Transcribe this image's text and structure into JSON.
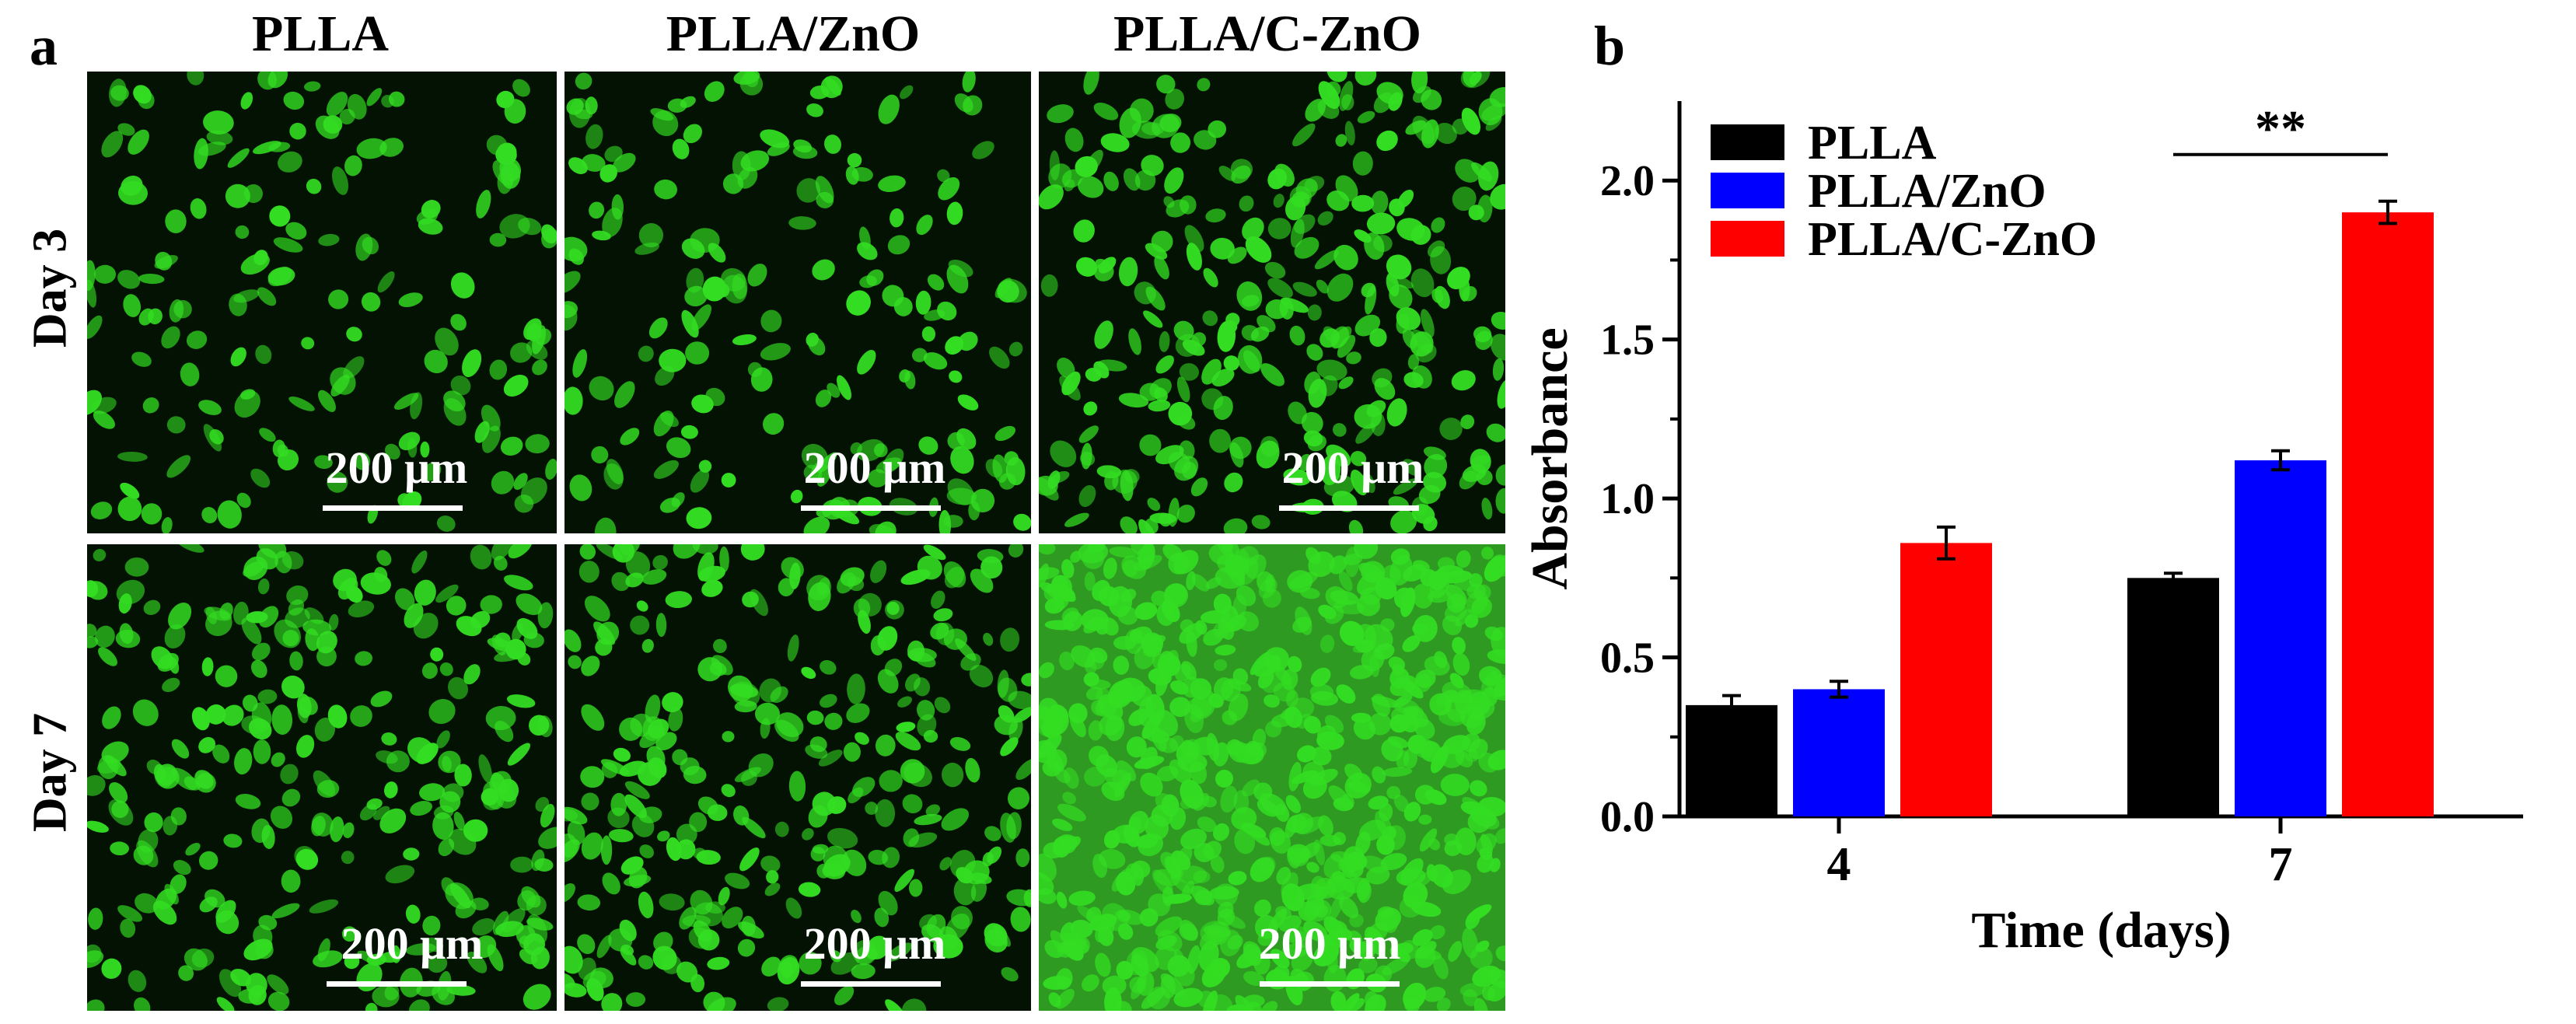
{
  "panel_a": {
    "label": "a",
    "columns": [
      "PLLA",
      "PLLA/ZnO",
      "PLLA/C-ZnO"
    ],
    "rows": [
      "Day 3",
      "Day 7"
    ],
    "scale_bar": "200 μm",
    "colors": {
      "cells": "#33dd22",
      "background": "#031203"
    }
  },
  "panel_b": {
    "label": "b"
  },
  "chart_data": {
    "type": "bar",
    "categories": [
      "4",
      "7"
    ],
    "series": [
      {
        "name": "PLLA",
        "color": "#000000",
        "values": [
          0.35,
          0.75
        ],
        "errors": [
          0.03,
          0.015
        ]
      },
      {
        "name": "PLLA/ZnO",
        "color": "#0000ff",
        "values": [
          0.4,
          1.12
        ],
        "errors": [
          0.025,
          0.03
        ]
      },
      {
        "name": "PLLA/C-ZnO",
        "color": "#ff0000",
        "values": [
          0.86,
          1.9
        ],
        "errors": [
          0.05,
          0.035
        ]
      }
    ],
    "xlabel": "Time (days)",
    "ylabel": "Absorbance",
    "ylim": [
      0,
      2.25
    ],
    "yticks": [
      "0.0",
      "0.5",
      "1.0",
      "1.5",
      "2.0"
    ],
    "legend_position": "top-left",
    "grid": false,
    "annotation": {
      "text": "**",
      "category": "7"
    }
  }
}
